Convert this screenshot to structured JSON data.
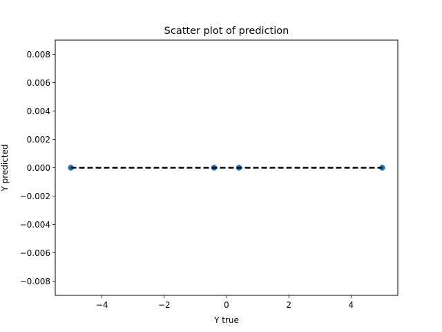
{
  "chart_data": {
    "type": "scatter",
    "title": "Scatter plot of prediction",
    "xlabel": "Y true",
    "ylabel": "Y predicted",
    "xlim": [
      -5.5,
      5.5
    ],
    "ylim": [
      -0.009,
      0.009
    ],
    "x_ticks": [
      -4,
      -2,
      0,
      2,
      4
    ],
    "x_tick_labels": [
      "−4",
      "−2",
      "0",
      "2",
      "4"
    ],
    "y_ticks": [
      -0.008,
      -0.006,
      -0.004,
      -0.002,
      0.0,
      0.002,
      0.004,
      0.006,
      0.008
    ],
    "y_tick_labels": [
      "−0.008",
      "−0.006",
      "−0.004",
      "−0.002",
      "0.000",
      "0.002",
      "0.004",
      "0.006",
      "0.008"
    ],
    "grid": false,
    "series": [
      {
        "marker": "circle",
        "color": "#1f77b4",
        "points": [
          {
            "x": -5.0,
            "y": 0.0
          },
          {
            "x": -0.4,
            "y": 0.0
          },
          {
            "x": 0.4,
            "y": 0.0
          },
          {
            "x": 5.0,
            "y": 0.0
          }
        ]
      }
    ],
    "reference_line": {
      "style": "dashed",
      "color": "#000000",
      "x": [
        -5.0,
        5.0
      ],
      "y": [
        0.0,
        0.0
      ]
    }
  }
}
